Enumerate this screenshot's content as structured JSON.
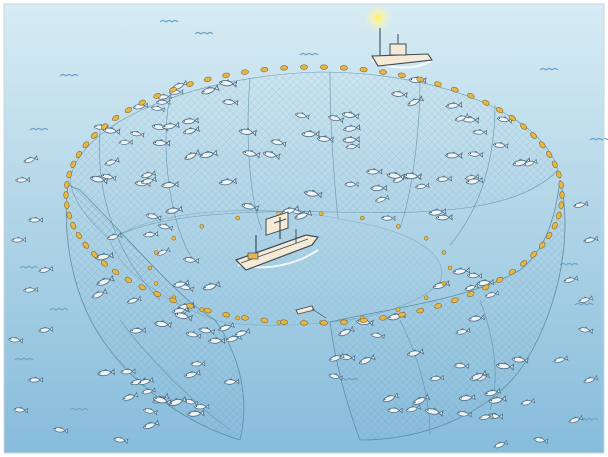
{
  "scene": {
    "subject": "purse-seine-fishing-illustration",
    "colors": {
      "sea_top": "#d7ecf4",
      "sea_bottom": "#7fb8d8",
      "net_line": "#5f8ea8",
      "float": "#e5b648",
      "float_outline": "#8a6a1c",
      "fish": "#eef3f6",
      "fish_outline": "#4f6f85",
      "boat_hull": "#f4ead6",
      "boat_outline": "#3d4c57",
      "sun": "#fff27a",
      "wave": "#6fa4c6"
    },
    "icons": [
      "main-fishing-vessel-icon",
      "support-boat-icon",
      "skiff-icon",
      "fish-school-icon",
      "float-line-icon",
      "seine-net-icon"
    ]
  }
}
